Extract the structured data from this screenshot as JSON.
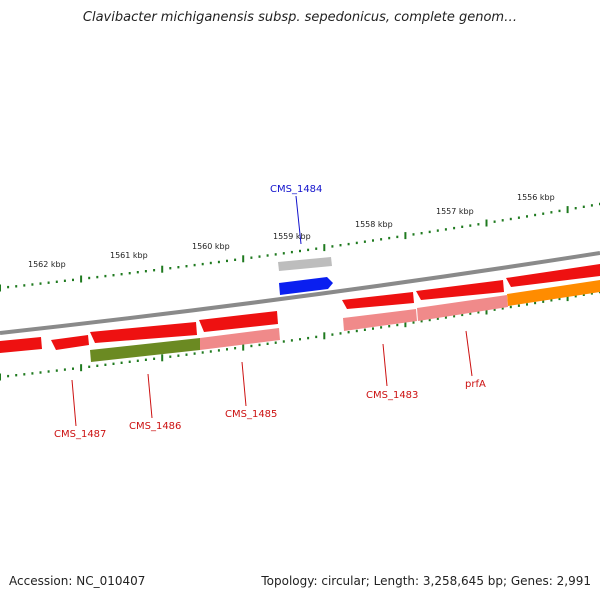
{
  "title": "Clavibacter michiganensis subsp. sepedonicus, complete genom…",
  "footer": {
    "accession": "Accession: NC_010407",
    "summary": "Topology: circular; Length: 3,258,645 bp; Genes: 2,991"
  },
  "colors": {
    "label_red": "#cc1111",
    "label_blue": "#1111cc",
    "backbone": "#8a8a8a",
    "tick": "#1f7a1f",
    "gene_red": "#ee1111",
    "gene_pink": "#f08a8a",
    "gene_olive": "#6b8a22",
    "gene_orange": "#ff8c00",
    "gene_blue": "#0a1ff0",
    "gene_grey": "#bdbdbd"
  },
  "scale_labels": [
    "1562 kbp",
    "1561 kbp",
    "1560 kbp",
    "1559 kbp",
    "1558 kbp",
    "1557 kbp",
    "1556 kbp"
  ],
  "gene_labels": [
    {
      "name": "CMS_1484",
      "color": "blue"
    },
    {
      "name": "CMS_1487",
      "color": "red"
    },
    {
      "name": "CMS_1486",
      "color": "red"
    },
    {
      "name": "CMS_1485",
      "color": "red"
    },
    {
      "name": "CMS_1483",
      "color": "red"
    },
    {
      "name": "prfA",
      "color": "red"
    }
  ]
}
